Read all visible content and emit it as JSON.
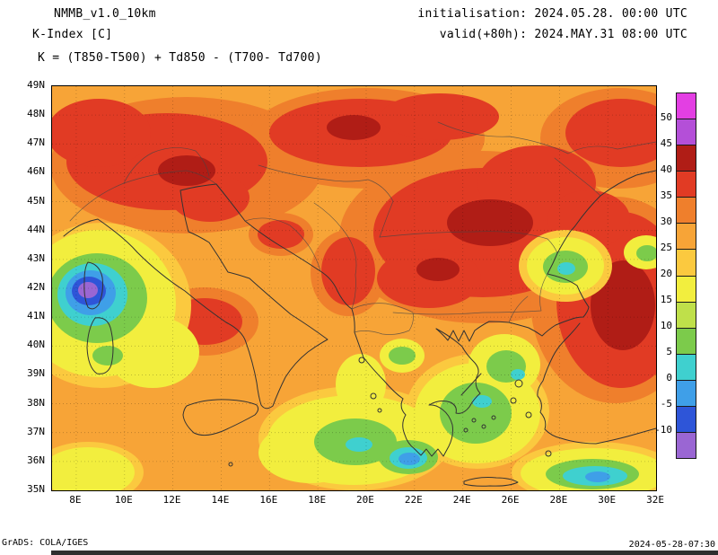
{
  "header": {
    "model": "NMMB_v1.0_10km",
    "parameter": "K-Index [C]",
    "formula": "K = (T850-T500) + Td850 - (T700- Td700)",
    "initialisation": "initialisation: 2024.05.28. 00:00 UTC",
    "valid": "valid(+80h): 2024.MAY.31 08:00 UTC"
  },
  "axes": {
    "lat": [
      "49N",
      "48N",
      "47N",
      "46N",
      "45N",
      "44N",
      "43N",
      "42N",
      "41N",
      "40N",
      "39N",
      "38N",
      "37N",
      "36N",
      "35N"
    ],
    "lon": [
      "8E",
      "10E",
      "12E",
      "14E",
      "16E",
      "18E",
      "20E",
      "22E",
      "24E",
      "26E",
      "28E",
      "30E",
      "32E"
    ]
  },
  "colorbar": {
    "units": "C",
    "ticks": [
      "50",
      "45",
      "40",
      "35",
      "30",
      "25",
      "20",
      "15",
      "10",
      "5",
      "0",
      "-5",
      "-10"
    ],
    "colors_top_to_bottom": [
      "#e33fe3",
      "#b44fd8",
      "#b01d16",
      "#e13b24",
      "#ef7f2c",
      "#f7a437",
      "#fbc93f",
      "#f2ee3e",
      "#bfe04a",
      "#7ccb4b",
      "#3fd0cf",
      "#3f9fe8",
      "#2e55d8",
      "#9a66d3"
    ]
  },
  "field_summary": [
    {
      "area": "most land areas",
      "k_index": "25-30"
    },
    {
      "area": "N Italy, Alps, Pannonian basin, central Balkans, E Black Sea side",
      "k_index": "35-45"
    },
    {
      "area": "W Mediterranean near Corsica",
      "k_index": "-10 to 5"
    },
    {
      "area": "Ionian and Aegean seas around Greece",
      "k_index": "0-20"
    },
    {
      "area": "SE corner sea (29-31E, 35-36N)",
      "k_index": "-5 to 10"
    }
  ],
  "footer": {
    "left": "GrADS: COLA/IGES",
    "right": "2024-05-28-07:30"
  }
}
